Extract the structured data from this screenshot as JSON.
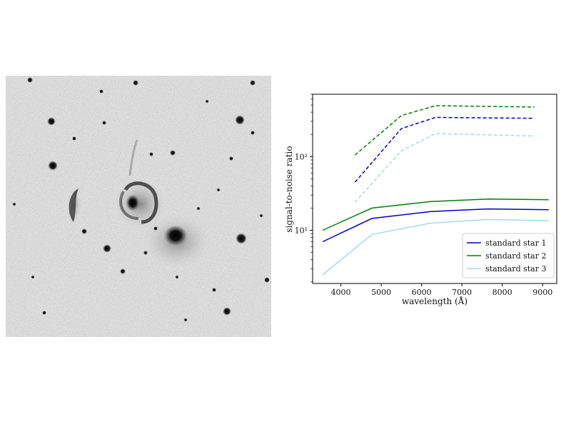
{
  "image_panel": {
    "alt_content": "grayscale-galaxy-field",
    "colors": {
      "background": "#ececec",
      "sources": "#0a0a0a"
    }
  },
  "chart_data": {
    "type": "line",
    "xlabel": "wavelength (Å)",
    "ylabel": "signal-to-noise ratio",
    "yscale": "log",
    "xlim": [
      3300,
      9350
    ],
    "ylim": [
      1.9,
      700
    ],
    "x_ticks": [
      4000,
      5000,
      6000,
      7000,
      8000,
      9000
    ],
    "y_ticks": [
      {
        "value": 10,
        "label": "10¹"
      },
      {
        "value": 100,
        "label": "10²"
      }
    ],
    "grid": false,
    "legend_placement": "lower-right",
    "series": [
      {
        "name": "standard star 1",
        "color": "#0000cc",
        "style": "solid",
        "x": [
          3550,
          4770,
          6230,
          7650,
          9150
        ],
        "y": [
          7.0,
          14.5,
          18.0,
          19.5,
          19.0
        ]
      },
      {
        "name": "standard star 2",
        "color": "#008000",
        "style": "solid",
        "x": [
          3550,
          4770,
          6230,
          7650,
          9150
        ],
        "y": [
          10.0,
          20.0,
          24.5,
          26.5,
          26.0
        ]
      },
      {
        "name": "standard star 3",
        "color": "#a8d8ea",
        "style": "solid",
        "x": [
          3550,
          4770,
          6230,
          7650,
          9150
        ],
        "y": [
          2.5,
          8.8,
          12.5,
          14.0,
          13.5
        ]
      },
      {
        "name": "",
        "color": "#0000cc",
        "style": "dashed",
        "x": [
          4350,
          5500,
          6350,
          8800
        ],
        "y": [
          45,
          240,
          340,
          330
        ]
      },
      {
        "name": "",
        "color": "#008000",
        "style": "dashed",
        "x": [
          4350,
          5500,
          6350,
          8800
        ],
        "y": [
          105,
          360,
          490,
          470
        ]
      },
      {
        "name": "",
        "color": "#a8d8ea",
        "style": "dashed",
        "x": [
          4350,
          5500,
          6350,
          8800
        ],
        "y": [
          24,
          120,
          205,
          190
        ]
      }
    ]
  }
}
